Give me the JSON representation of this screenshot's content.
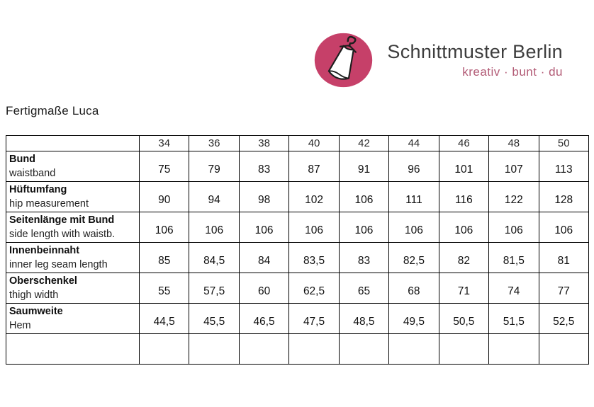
{
  "brand": {
    "name": "Schnittmuster Berlin",
    "tagline": "kreativ · bunt · du",
    "logo_color": "#c64069",
    "name_color": "#3d3d3d",
    "tagline_color": "#b25a75"
  },
  "page_title": "Fertigmaße Luca",
  "table": {
    "sizes": [
      "34",
      "36",
      "38",
      "40",
      "42",
      "44",
      "46",
      "48",
      "50"
    ],
    "rows": [
      {
        "label_de": "Bund",
        "label_en": "waistband",
        "values": [
          "75",
          "79",
          "83",
          "87",
          "91",
          "96",
          "101",
          "107",
          "113"
        ]
      },
      {
        "label_de": "Hüftumfang",
        "label_en": "hip measurement",
        "values": [
          "90",
          "94",
          "98",
          "102",
          "106",
          "111",
          "116",
          "122",
          "128"
        ]
      },
      {
        "label_de": "Seitenlänge mit Bund",
        "label_en": "side length with waistb.",
        "values": [
          "106",
          "106",
          "106",
          "106",
          "106",
          "106",
          "106",
          "106",
          "106"
        ]
      },
      {
        "label_de": "Innenbeinnaht",
        "label_en": "inner leg seam length",
        "values": [
          "85",
          "84,5",
          "84",
          "83,5",
          "83",
          "82,5",
          "82",
          "81,5",
          "81"
        ]
      },
      {
        "label_de": "Oberschenkel",
        "label_en": "thigh width",
        "values": [
          "55",
          "57,5",
          "60",
          "62,5",
          "65",
          "68",
          "71",
          "74",
          "77"
        ]
      },
      {
        "label_de": "Saumweite",
        "label_en": "Hem",
        "values": [
          "44,5",
          "45,5",
          "46,5",
          "47,5",
          "48,5",
          "49,5",
          "50,5",
          "51,5",
          "52,5"
        ]
      }
    ],
    "has_trailing_empty_row": true
  }
}
